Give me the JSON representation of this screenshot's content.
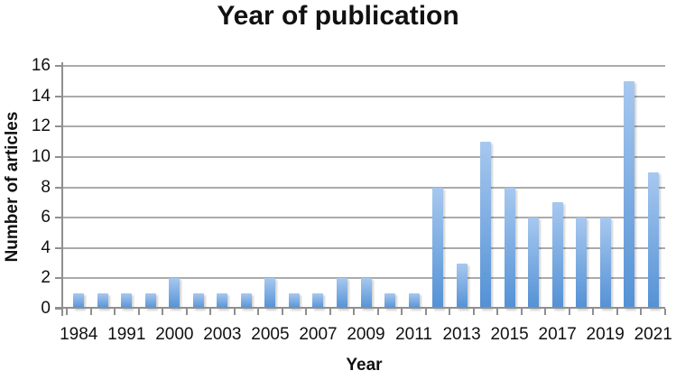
{
  "chart_data": {
    "type": "bar",
    "title": "Year of publication",
    "xlabel": "Year",
    "ylabel": "Number of articles",
    "categories": [
      "1984",
      "",
      "1991",
      "",
      "2000",
      "",
      "2003",
      "",
      "2005",
      "",
      "2007",
      "",
      "2009",
      "",
      "2011",
      "",
      "2013",
      "",
      "2015",
      "",
      "2017",
      "",
      "2019",
      "",
      "2021"
    ],
    "values": [
      1,
      1,
      1,
      1,
      2,
      1,
      1,
      1,
      2,
      1,
      1,
      2,
      2,
      1,
      1,
      8,
      3,
      11,
      8,
      6,
      7,
      6,
      6,
      15,
      9
    ],
    "ylim": [
      0,
      16
    ],
    "yticks": [
      0,
      2,
      4,
      6,
      8,
      10,
      12,
      14,
      16
    ],
    "grid": true,
    "legend": "none",
    "bar_color_top": "#a7c8ef",
    "bar_color_bottom": "#5391d5",
    "gridline_color": "#ababab",
    "axis_color": "#8f8f8f",
    "text_color": "#111111"
  }
}
